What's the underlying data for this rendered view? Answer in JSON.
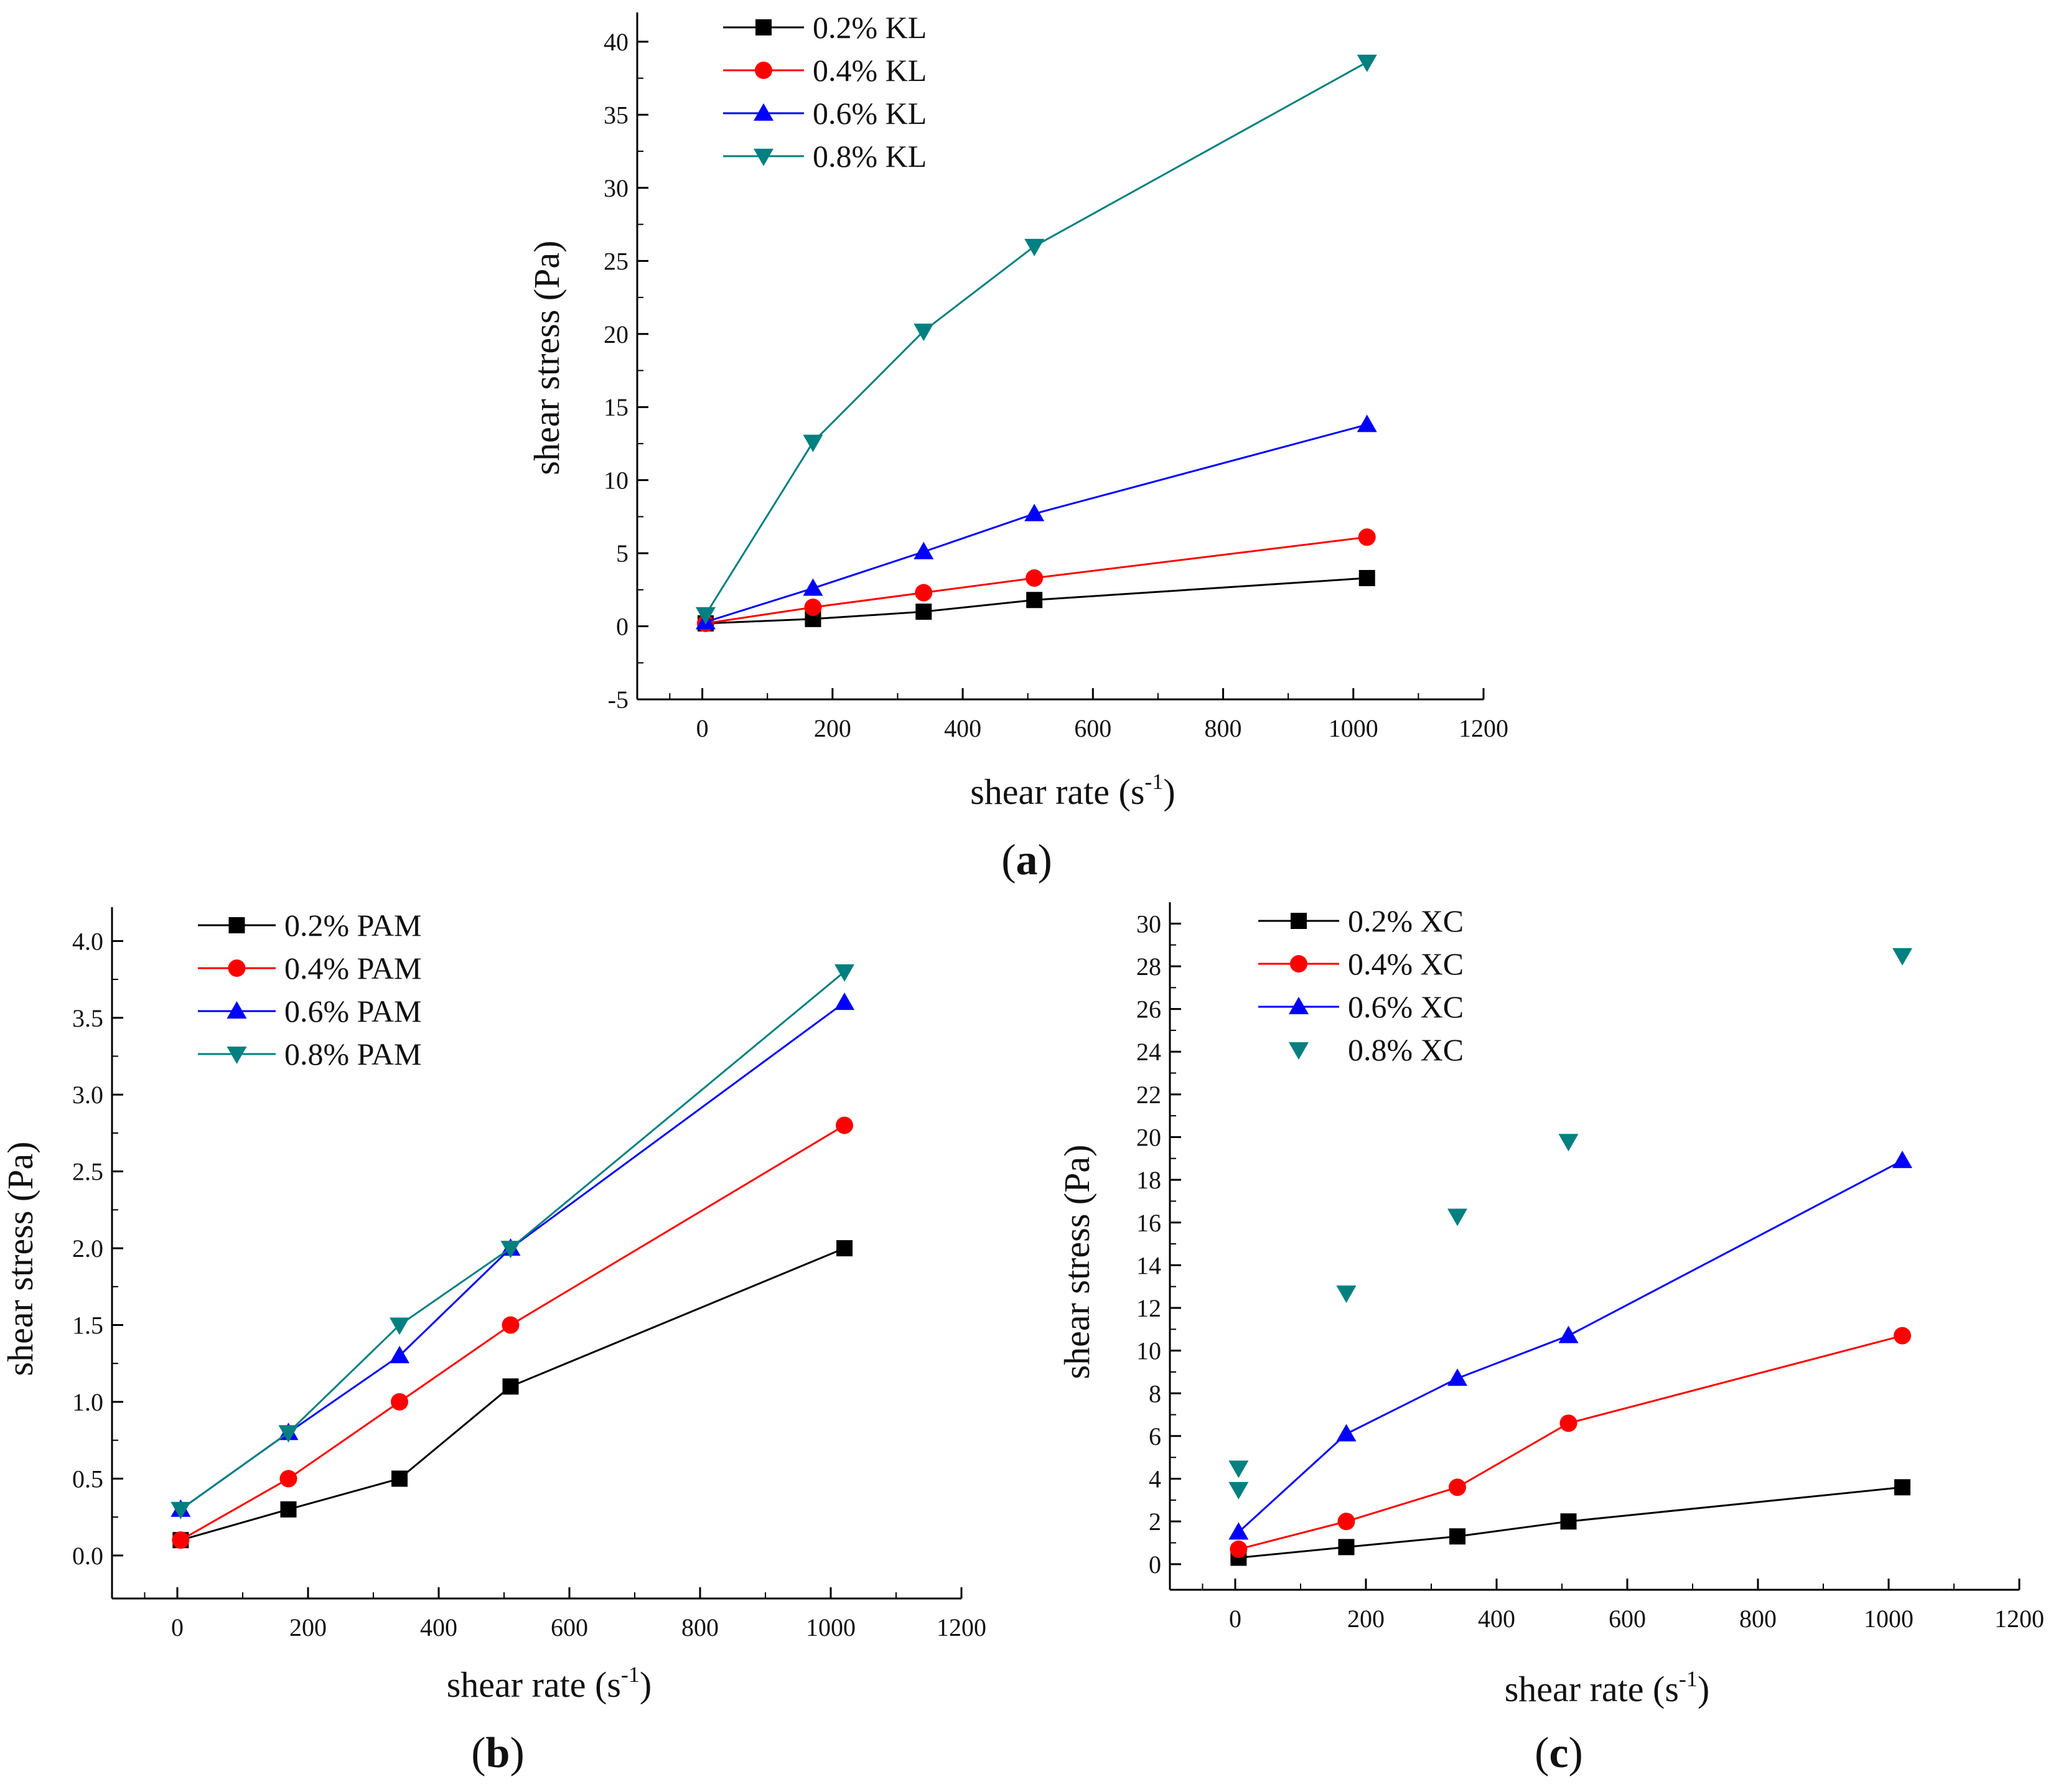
{
  "chart_data": [
    {
      "panel": "a",
      "panel_label": "a",
      "type": "line",
      "xlabel": "shear rate (s",
      "xlabel_sup": "-1",
      "xlabel_end": ")",
      "ylabel": "shear stress (Pa)",
      "xlim": [
        -100,
        1200
      ],
      "ylim": [
        -5,
        42
      ],
      "xticks": [
        0,
        200,
        400,
        600,
        800,
        1000,
        1200
      ],
      "yticks": [
        -5,
        0,
        5,
        10,
        15,
        20,
        25,
        30,
        35,
        40
      ],
      "x": [
        5.1,
        170,
        340,
        510,
        1021
      ],
      "series": [
        {
          "name": "0.2% KL",
          "color": "#000000",
          "marker": "square",
          "line": true,
          "values": [
            0.2,
            0.5,
            1.0,
            1.8,
            3.3
          ]
        },
        {
          "name": "0.4% KL",
          "color": "#ff0000",
          "marker": "circle",
          "line": true,
          "values": [
            0.2,
            1.3,
            2.3,
            3.3,
            6.1
          ]
        },
        {
          "name": "0.6% KL",
          "color": "#0000ff",
          "marker": "triangle-up",
          "line": true,
          "values": [
            0.3,
            2.6,
            5.1,
            7.7,
            13.8
          ]
        },
        {
          "name": "0.8% KL",
          "color": "#008080",
          "marker": "triangle-down",
          "line": true,
          "values": [
            0.8,
            12.6,
            20.2,
            26.0,
            38.6
          ]
        }
      ]
    },
    {
      "panel": "b",
      "panel_label": "b",
      "type": "line",
      "xlabel": "shear rate (s",
      "xlabel_sup": "-1",
      "xlabel_end": ")",
      "ylabel": "shear stress (Pa)",
      "xlim": [
        -100,
        1200
      ],
      "ylim": [
        -0.28,
        4.22
      ],
      "xticks": [
        0,
        200,
        400,
        600,
        800,
        1000,
        1200
      ],
      "yticks": [
        0.0,
        0.5,
        1.0,
        1.5,
        2.0,
        2.5,
        3.0,
        3.5,
        4.0
      ],
      "ytick_labels": [
        "0.0",
        "0.5",
        "1.0",
        "1.5",
        "2.0",
        "2.5",
        "3.0",
        "3.5",
        "4.0"
      ],
      "x": [
        5.1,
        170,
        340,
        510,
        1021
      ],
      "series": [
        {
          "name": "0.2% PAM",
          "color": "#000000",
          "marker": "square",
          "line": true,
          "values": [
            0.1,
            0.3,
            0.5,
            1.1,
            2.0
          ]
        },
        {
          "name": "0.4% PAM",
          "color": "#ff0000",
          "marker": "circle",
          "line": true,
          "values": [
            0.1,
            0.5,
            1.0,
            1.5,
            2.8
          ]
        },
        {
          "name": "0.6% PAM",
          "color": "#0000ff",
          "marker": "triangle-up",
          "line": true,
          "values": [
            0.3,
            0.8,
            1.3,
            2.0,
            3.6
          ]
        },
        {
          "name": "0.8% PAM",
          "color": "#008080",
          "marker": "triangle-down",
          "line": true,
          "values": [
            0.3,
            0.8,
            1.5,
            2.0,
            3.8
          ]
        }
      ]
    },
    {
      "panel": "c",
      "panel_label": "c",
      "type": "line",
      "xlabel": "shear rate (s",
      "xlabel_sup": "-1",
      "xlabel_end": ")",
      "ylabel": "shear stress (Pa)",
      "xlim": [
        -100,
        1200
      ],
      "ylim": [
        -1.2,
        31
      ],
      "xticks": [
        0,
        200,
        400,
        600,
        800,
        1000,
        1200
      ],
      "yticks": [
        0,
        2,
        4,
        6,
        8,
        10,
        12,
        14,
        16,
        18,
        20,
        22,
        24,
        26,
        28,
        30
      ],
      "x": [
        5.1,
        170,
        340,
        510,
        1021
      ],
      "series": [
        {
          "name": "0.2% XC",
          "color": "#000000",
          "marker": "square",
          "line": true,
          "values": [
            0.3,
            0.8,
            1.3,
            2.0,
            3.6
          ]
        },
        {
          "name": "0.4% XC",
          "color": "#ff0000",
          "marker": "circle",
          "line": true,
          "values": [
            0.7,
            2.0,
            3.6,
            6.6,
            10.7
          ]
        },
        {
          "name": "0.6% XC",
          "color": "#0000ff",
          "marker": "triangle-up",
          "line": true,
          "values": [
            1.5,
            6.1,
            8.7,
            10.7,
            18.9
          ]
        },
        {
          "name": "0.8% XC",
          "color": "#008080",
          "marker": "triangle-down",
          "line": false,
          "values": [
            4.5,
            12.7,
            16.3,
            19.8,
            28.5
          ],
          "extra_points": [
            {
              "x": 5.1,
              "y": 3.5
            }
          ]
        }
      ]
    }
  ]
}
